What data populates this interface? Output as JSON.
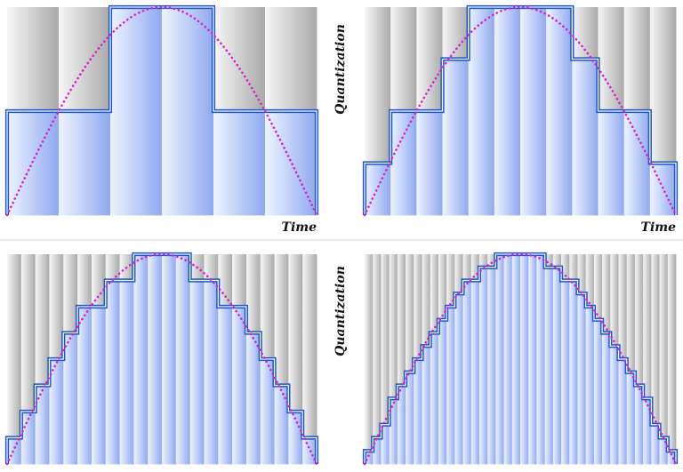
{
  "colors": {
    "step_stroke_outer": "#1e56c8",
    "step_stroke_inner": "#ffffff",
    "sine_curve": "#d61fd1",
    "fill_under_light": "#e8f0ff",
    "fill_under_dark": "#8fa9f0",
    "grid_light": "#f6f6f6",
    "grid_dark": "#aeaeae"
  },
  "labels": {
    "time": "Time",
    "quantization": "Quantization"
  },
  "panels": [
    {
      "name": "panel-2-levels",
      "quantization_levels": 2,
      "time_steps": 6
    },
    {
      "name": "panel-4-levels",
      "quantization_levels": 4,
      "time_steps": 12
    },
    {
      "name": "panel-8-levels",
      "quantization_levels": 8,
      "time_steps": 22
    },
    {
      "name": "panel-16-levels",
      "quantization_levels": 16,
      "time_steps": 38
    }
  ]
}
